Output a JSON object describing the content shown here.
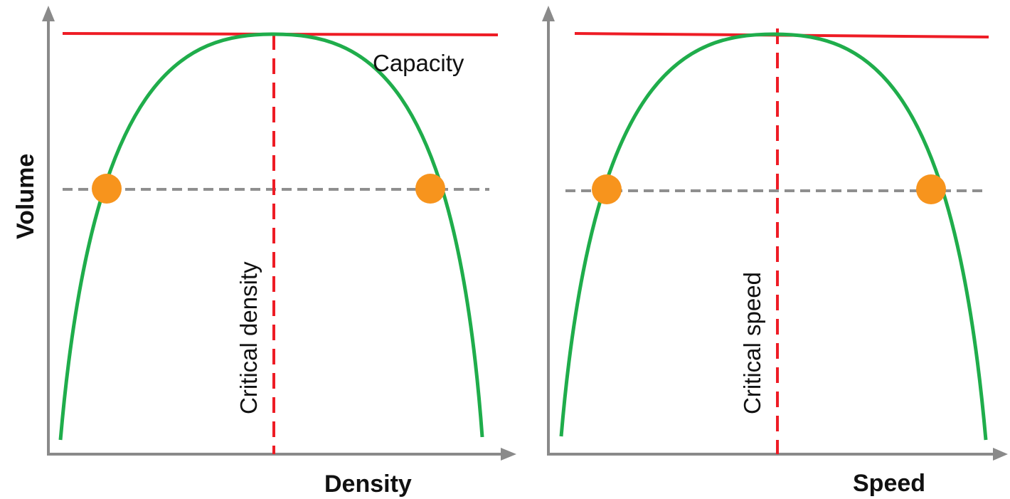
{
  "colors": {
    "capacity_line": "#ee1c25",
    "critical_line": "#ee1c25",
    "curve": "#1fad4b",
    "marker": "#f7941d",
    "axis": "#8a8a8a",
    "level_line": "#8f8f8f"
  },
  "y_axis_label": "Volume",
  "panels": [
    {
      "x_axis_label": "Density",
      "capacity_label": "Capacity",
      "critical_label": "Critical density"
    },
    {
      "x_axis_label": "Speed",
      "critical_label": "Critical speed"
    }
  ]
}
